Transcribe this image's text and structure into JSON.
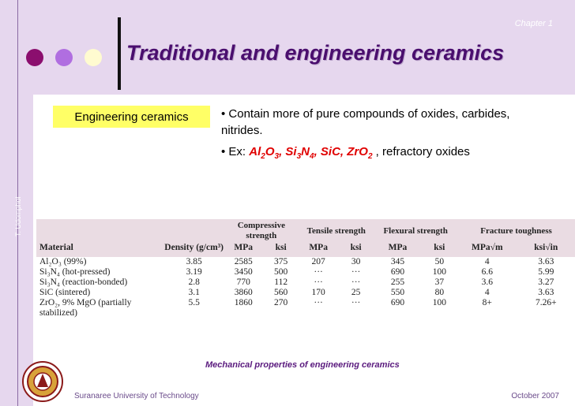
{
  "header": {
    "chapter": "Chapter 1",
    "title": "Traditional and engineering ceramics",
    "dot_colors": [
      "#8b0e6e",
      "#b06ee0",
      "#fffbd0"
    ]
  },
  "side_text": "T. Udomphol",
  "label": "Engineering ceramics",
  "bullets": {
    "b1": "• Contain more of pure compounds of oxides, carbides, nitrides.",
    "b2_prefix": "• Ex: ",
    "b2_suffix": " , refractory oxides"
  },
  "formulas": [
    {
      "base": "Al",
      "s1": "2",
      "mid": "O",
      "s2": "3",
      "sep": ", "
    },
    {
      "base": "Si",
      "s1": "3",
      "mid": "N",
      "s2": "4",
      "sep": ", "
    },
    {
      "base": "SiC",
      "s1": "",
      "mid": "",
      "s2": "",
      "sep": ", "
    },
    {
      "base": "ZrO",
      "s1": "2",
      "mid": "",
      "s2": "",
      "sep": ""
    }
  ],
  "table": {
    "group_headers": {
      "compressive": "Compressive strength",
      "tensile": "Tensile strength",
      "flexural": "Flexural strength",
      "fracture": "Fracture toughness"
    },
    "col_headers": {
      "material": "Material",
      "density": "Density (g/cm³)",
      "mpa": "MPa",
      "ksi": "ksi",
      "frac_mpa": "MPa√m",
      "frac_ksi": "ksi√in"
    },
    "rows": [
      {
        "material": "Al₂O₃ (99%)",
        "density": "3.85",
        "comp_mpa": "2585",
        "comp_ksi": "375",
        "ten_mpa": "207",
        "ten_ksi": "30",
        "flex_mpa": "345",
        "flex_ksi": "50",
        "frac_mpa": "4",
        "frac_ksi": "3.63"
      },
      {
        "material": "Si₃N₄ (hot-pressed)",
        "density": "3.19",
        "comp_mpa": "3450",
        "comp_ksi": "500",
        "ten_mpa": "···",
        "ten_ksi": "···",
        "flex_mpa": "690",
        "flex_ksi": "100",
        "frac_mpa": "6.6",
        "frac_ksi": "5.99"
      },
      {
        "material": "Si₃N₄ (reaction-bonded)",
        "density": "2.8",
        "comp_mpa": "770",
        "comp_ksi": "112",
        "ten_mpa": "···",
        "ten_ksi": "···",
        "flex_mpa": "255",
        "flex_ksi": "37",
        "frac_mpa": "3.6",
        "frac_ksi": "3.27"
      },
      {
        "material": "SiC (sintered)",
        "density": "3.1",
        "comp_mpa": "3860",
        "comp_ksi": "560",
        "ten_mpa": "170",
        "ten_ksi": "25",
        "flex_mpa": "550",
        "flex_ksi": "80",
        "frac_mpa": "4",
        "frac_ksi": "3.63"
      },
      {
        "material": "ZrO₂, 9% MgO (partially",
        "density": "5.5",
        "comp_mpa": "1860",
        "comp_ksi": "270",
        "ten_mpa": "···",
        "ten_ksi": "···",
        "flex_mpa": "690",
        "flex_ksi": "100",
        "frac_mpa": "8+",
        "frac_ksi": "7.26+"
      },
      {
        "material": "stabilized)",
        "density": "",
        "comp_mpa": "",
        "comp_ksi": "",
        "ten_mpa": "",
        "ten_ksi": "",
        "flex_mpa": "",
        "flex_ksi": "",
        "frac_mpa": "",
        "frac_ksi": ""
      }
    ]
  },
  "caption": "Mechanical properties of engineering ceramics",
  "footer": {
    "left": "Suranaree University of Technology",
    "right": "October   2007"
  }
}
